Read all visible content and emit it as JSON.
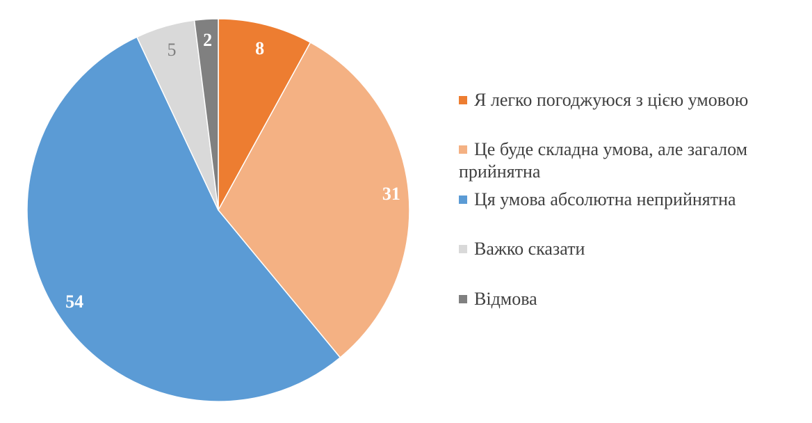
{
  "chart_data": {
    "type": "pie",
    "title": "",
    "categories": [
      "Я легко погоджуюся з цією умовою",
      "Це буде складна умова, але загалом прийнятна",
      "Ця умова абсолютна неприйнятна",
      "Важко сказати",
      "Відмова"
    ],
    "values": [
      8,
      31,
      54,
      5,
      2
    ],
    "data_labels": [
      "8",
      "31",
      "54",
      "5",
      "2"
    ],
    "colors": [
      "#ED7D31",
      "#F4B183",
      "#5B9BD5",
      "#D9D9D9",
      "#808080"
    ],
    "label_colors": [
      "#FFFFFF",
      "#FFFFFF",
      "#FFFFFF",
      "#808080",
      "#FFFFFF"
    ],
    "start_angle": "top, clockwise",
    "legend_position": "right"
  }
}
